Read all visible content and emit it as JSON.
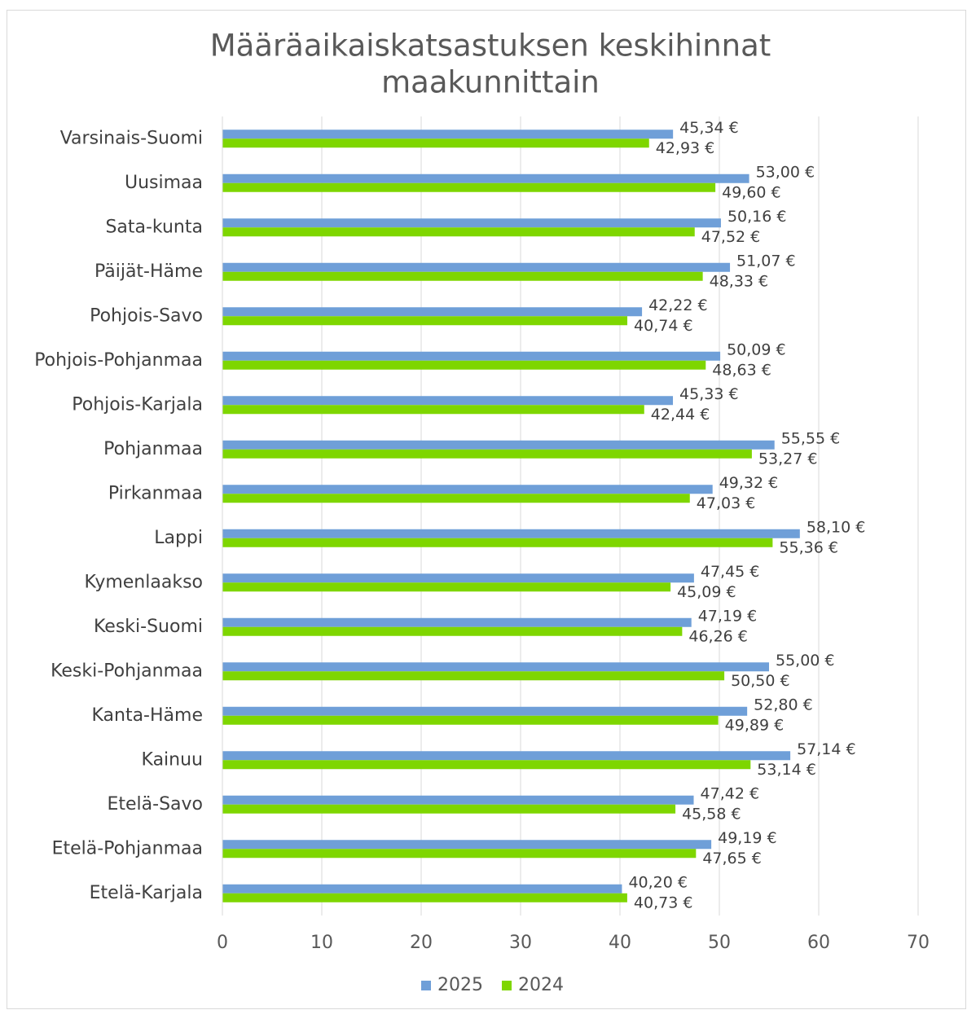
{
  "chart_data": {
    "type": "hbar",
    "title": [
      "Määräaikaiskatsastuksen keskihinnat",
      "maakunnittain"
    ],
    "categories": [
      "Varsinais-Suomi",
      "Uusimaa",
      "Sata-kunta",
      "Päijät-Häme",
      "Pohjois-Savo",
      "Pohjois-Pohjanmaa",
      "Pohjois-Karjala",
      "Pohjanmaa",
      "Pirkanmaa",
      "Lappi",
      "Kymenlaakso",
      "Keski-Suomi",
      "Keski-Pohjanmaa",
      "Kanta-Häme",
      "Kainuu",
      "Etelä-Savo",
      "Etelä-Pohjanmaa",
      "Etelä-Karjala"
    ],
    "series": [
      {
        "name": "2025",
        "color": "#6f9fd8",
        "values": [
          45.34,
          53.0,
          50.16,
          51.07,
          42.22,
          50.09,
          45.33,
          55.55,
          49.32,
          58.1,
          47.45,
          47.19,
          55.0,
          52.8,
          57.14,
          47.42,
          49.19,
          40.2
        ],
        "value_labels": [
          "45,34 €",
          "53,00 €",
          "50,16 €",
          "51,07 €",
          "42,22 €",
          "50,09 €",
          "45,33 €",
          "55,55 €",
          "49,32 €",
          "58,10 €",
          "47,45 €",
          "47,19 €",
          "55,00 €",
          "52,80 €",
          "57,14 €",
          "47,42 €",
          "49,19 €",
          "40,20 €"
        ]
      },
      {
        "name": "2024",
        "color": "#7ed600",
        "values": [
          42.93,
          49.6,
          47.52,
          48.33,
          40.74,
          48.63,
          42.44,
          53.27,
          47.03,
          55.36,
          45.09,
          46.26,
          50.5,
          49.89,
          53.14,
          45.58,
          47.65,
          40.73
        ],
        "value_labels": [
          "42,93 €",
          "49,60 €",
          "47,52 €",
          "48,33 €",
          "40,74 €",
          "48,63 €",
          "42,44 €",
          "53,27 €",
          "47,03 €",
          "55,36 €",
          "45,09 €",
          "46,26 €",
          "50,50 €",
          "49,89 €",
          "53,14 €",
          "45,58 €",
          "47,65 €",
          "40,73 €"
        ]
      }
    ],
    "xlim": [
      0,
      70
    ],
    "xticks": [
      0,
      10,
      20,
      30,
      40,
      50,
      60,
      70
    ],
    "grid": true,
    "legend": "bottom"
  }
}
